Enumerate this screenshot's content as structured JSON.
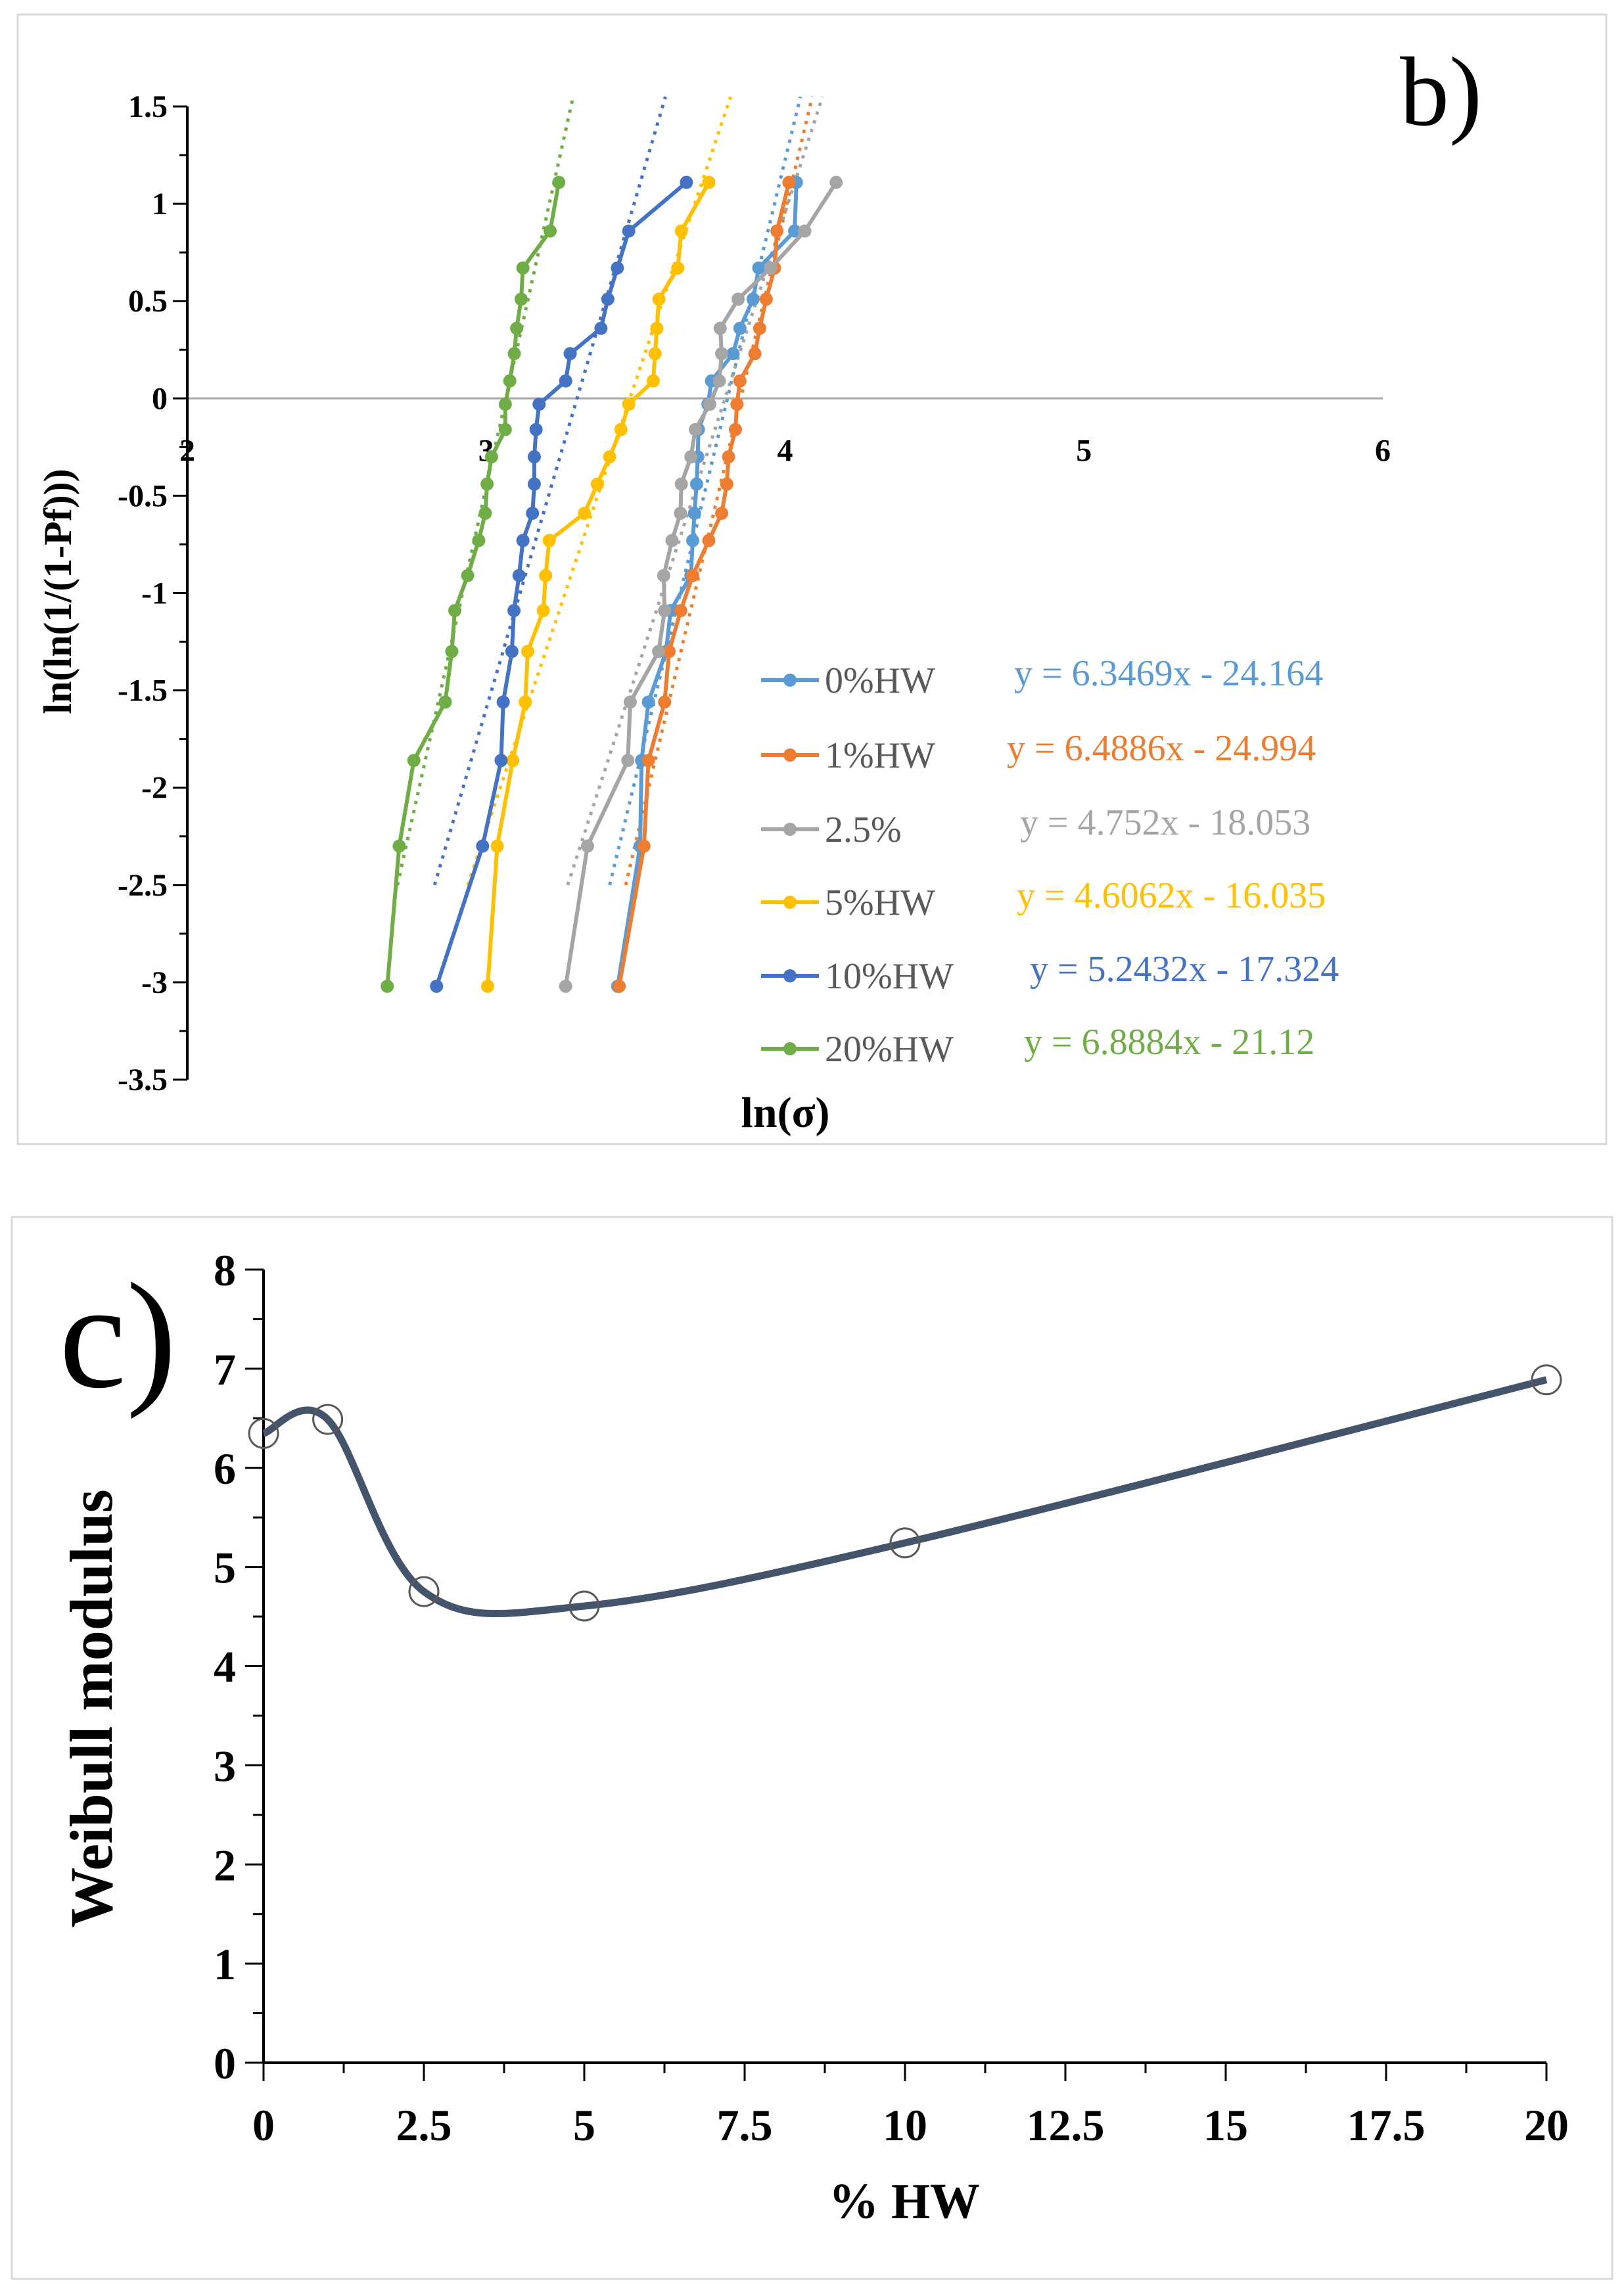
{
  "chart_data": [
    {
      "panel_label": "b)",
      "type": "line",
      "xlabel": "ln(σ)",
      "ylabel": "ln(ln(1/(1-Pf)))",
      "xlim": [
        2,
        6
      ],
      "ylim": [
        -3.5,
        1.5
      ],
      "xticks": [
        "2",
        "3",
        "4",
        "5",
        "6"
      ],
      "yticks": [
        "1.5",
        "1",
        "0.5",
        "0",
        "-0.5",
        "-1",
        "-1.5",
        "-2",
        "-2.5",
        "-3",
        "-3.5"
      ],
      "y": [
        -3.02,
        -2.3,
        -1.86,
        -1.56,
        -1.3,
        -1.09,
        -0.91,
        -0.73,
        -0.59,
        -0.44,
        -0.3,
        -0.16,
        -0.03,
        0.09,
        0.23,
        0.36,
        0.51,
        0.67,
        0.86,
        1.11
      ],
      "legend_position": "bottom-right",
      "series": [
        {
          "name": "0%HW",
          "color": "#5B9BD5",
          "equation": "y = 6.3469x - 24.164",
          "slope": 6.3469,
          "intercept": -24.164,
          "x": [
            3.44,
            3.515,
            3.52,
            3.543,
            3.602,
            3.617,
            3.685,
            3.691,
            3.697,
            3.704,
            3.708,
            3.71,
            3.742,
            3.754,
            3.826,
            3.849,
            3.893,
            3.912,
            4.032,
            4.038
          ]
        },
        {
          "name": "1%HW",
          "color": "#ED7D31",
          "equation": "y = 6.4886x - 24.994",
          "slope": 6.4886,
          "intercept": -24.994,
          "x": [
            3.445,
            3.528,
            3.543,
            3.597,
            3.612,
            3.651,
            3.691,
            3.745,
            3.788,
            3.805,
            3.811,
            3.834,
            3.839,
            3.849,
            3.899,
            3.915,
            3.937,
            3.965,
            3.973,
            4.013
          ]
        },
        {
          "name": "2.5%",
          "color": "#A5A5A5",
          "equation": "y = 4.752x - 18.053",
          "slope": 4.752,
          "intercept": -18.053,
          "x": [
            3.266,
            3.339,
            3.474,
            3.482,
            3.577,
            3.597,
            3.594,
            3.622,
            3.65,
            3.653,
            3.685,
            3.7,
            3.748,
            3.78,
            3.788,
            3.783,
            3.843,
            3.952,
            4.066,
            4.171
          ]
        },
        {
          "name": "5%HW",
          "color": "#FFC000",
          "equation": "y = 4.6062x - 16.035",
          "slope": 4.6062,
          "intercept": -16.035,
          "x": [
            3.005,
            3.037,
            3.089,
            3.131,
            3.139,
            3.191,
            3.199,
            3.211,
            3.329,
            3.372,
            3.413,
            3.451,
            3.477,
            3.559,
            3.565,
            3.571,
            3.578,
            3.641,
            3.653,
            3.745
          ]
        },
        {
          "name": "10%HW",
          "color": "#4472C4",
          "equation": "y = 5.2432x - 17.324",
          "slope": 5.2432,
          "intercept": -17.324,
          "x": [
            2.834,
            2.988,
            3.05,
            3.057,
            3.086,
            3.093,
            3.11,
            3.123,
            3.155,
            3.161,
            3.161,
            3.167,
            3.177,
            3.266,
            3.281,
            3.384,
            3.407,
            3.439,
            3.477,
            3.67
          ]
        },
        {
          "name": "20%HW",
          "color": "#70AD47",
          "equation": "y = 6.8884x - 21.12",
          "slope": 6.8884,
          "intercept": -21.12,
          "x": [
            2.669,
            2.709,
            2.758,
            2.863,
            2.885,
            2.895,
            2.938,
            2.975,
            2.997,
            3.003,
            3.018,
            3.064,
            3.064,
            3.079,
            3.094,
            3.102,
            3.117,
            3.123,
            3.214,
            3.243
          ]
        }
      ]
    },
    {
      "panel_label": "c)",
      "type": "line",
      "xlabel": "% HW",
      "ylabel": "Weibull modulus",
      "xlim": [
        0,
        20
      ],
      "ylim": [
        0,
        8
      ],
      "xticks": [
        "0",
        "2.5",
        "5",
        "7.5",
        "10",
        "12.5",
        "15",
        "17.5",
        "20"
      ],
      "yticks": [
        "0",
        "1",
        "2",
        "3",
        "4",
        "5",
        "6",
        "7",
        "8"
      ],
      "color": "#44546A",
      "x": [
        0,
        1,
        2.5,
        5,
        10,
        20
      ],
      "values": [
        6.3469,
        6.4886,
        4.752,
        4.6062,
        5.2432,
        6.8884
      ]
    }
  ]
}
